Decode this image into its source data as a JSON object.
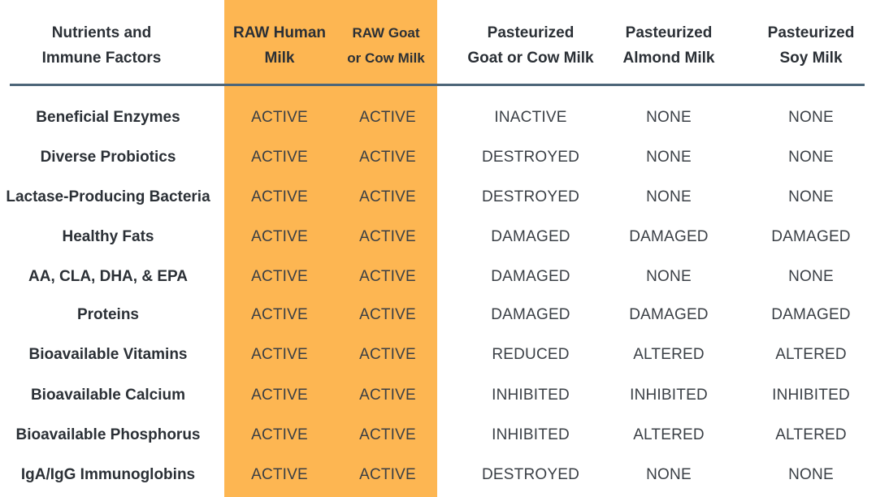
{
  "table": {
    "headers": [
      "Nutrients and\nImmune Factors",
      "RAW Human\nMilk",
      "RAW Goat\nor Cow Milk",
      "Pasteurized\nGoat or Cow Milk",
      "Pasteurized\nAlmond Milk",
      "Pasteurized\nSoy Milk"
    ],
    "rows": [
      [
        "Beneficial Enzymes",
        "ACTIVE",
        "ACTIVE",
        "INACTIVE",
        "NONE",
        "NONE"
      ],
      [
        "Diverse Probiotics",
        "ACTIVE",
        "ACTIVE",
        "DESTROYED",
        "NONE",
        "NONE"
      ],
      [
        "Lactase-Producing Bacteria",
        "ACTIVE",
        "ACTIVE",
        "DESTROYED",
        "NONE",
        "NONE"
      ],
      [
        "Healthy Fats",
        "ACTIVE",
        "ACTIVE",
        "DAMAGED",
        "DAMAGED",
        "DAMAGED"
      ],
      [
        "AA, CLA, DHA, & EPA",
        "ACTIVE",
        "ACTIVE",
        "DAMAGED",
        "NONE",
        "NONE"
      ],
      [
        "Proteins",
        "ACTIVE",
        "ACTIVE",
        "DAMAGED",
        "DAMAGED",
        "DAMAGED"
      ],
      [
        "Bioavailable Vitamins",
        "ACTIVE",
        "ACTIVE",
        "REDUCED",
        "ALTERED",
        "ALTERED"
      ],
      [
        "Bioavailable Calcium",
        "ACTIVE",
        "ACTIVE",
        "INHIBITED",
        "INHIBITED",
        "INHIBITED"
      ],
      [
        "Bioavailable Phosphorus",
        "ACTIVE",
        "ACTIVE",
        "INHIBITED",
        "ALTERED",
        "ALTERED"
      ],
      [
        "IgA/IgG Immunoglobins",
        "ACTIVE",
        "ACTIVE",
        "DESTROYED",
        "NONE",
        "NONE"
      ]
    ]
  },
  "colors": {
    "highlight": "#FDB652",
    "divider": "#4d6679",
    "text": "#2f3338"
  }
}
